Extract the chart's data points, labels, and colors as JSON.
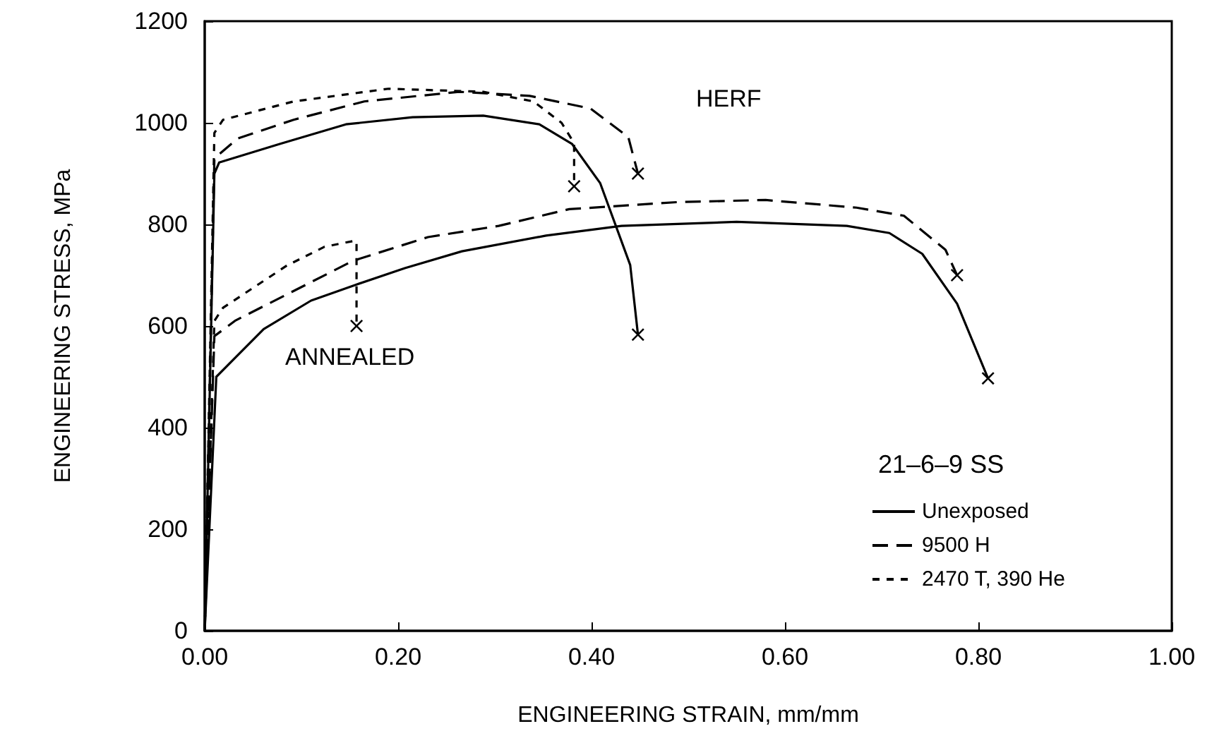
{
  "chart_data": {
    "type": "line",
    "xlabel": "ENGINEERING STRAIN, mm/mm",
    "ylabel": "ENGINEERING STRESS, MPa",
    "legend_title": "21–6–9 SS",
    "legend": "bottom right",
    "grid": false,
    "xlim": [
      0,
      1
    ],
    "xticks": [
      {
        "value": 0,
        "label": "0.00"
      },
      {
        "value": 0.2,
        "label": "0.20"
      },
      {
        "value": 0.4,
        "label": "0.40"
      },
      {
        "value": 0.6,
        "label": "0.60"
      },
      {
        "value": 0.8,
        "label": "0.80"
      },
      {
        "value": 1,
        "label": "1.00"
      }
    ],
    "ylim": [
      0,
      1200
    ],
    "yticks": [
      0,
      200,
      400,
      600,
      800,
      1000,
      1200
    ],
    "annotations": [
      "HERF",
      "ANNEALED"
    ],
    "series": [
      {
        "name": "Unexposed",
        "color": "#000000",
        "line_style": "solid",
        "x": [
          0,
          0.01,
          0.015,
          0.077,
          0.146,
          0.215,
          0.288,
          0.346,
          0.38,
          0.409,
          0.44,
          0.448
        ],
        "values": [
          0,
          900,
          922,
          958,
          997,
          1011,
          1014,
          997,
          958,
          881,
          720,
          583
        ]
      },
      {
        "name": "9500 H",
        "color": "#000000",
        "line_style": "dashed",
        "x": [
          0,
          0.01,
          0.034,
          0.092,
          0.165,
          0.263,
          0.336,
          0.399,
          0.438,
          0.448
        ],
        "values": [
          0,
          930,
          969,
          1006,
          1042,
          1061,
          1053,
          1028,
          972,
          900
        ]
      },
      {
        "name": "2470 T, 390 He",
        "color": "#000000",
        "line_style": "dotted",
        "x": [
          0,
          0.01,
          0.019,
          0.092,
          0.19,
          0.288,
          0.34,
          0.369,
          0.382,
          0.382
        ],
        "values": [
          0,
          980,
          1006,
          1042,
          1067,
          1061,
          1042,
          1000,
          960,
          875
        ]
      },
      {
        "color": "#000000",
        "line_style": "solid",
        "x": [
          0,
          0.012,
          0.061,
          0.11,
          0.156,
          0.207,
          0.266,
          0.353,
          0.431,
          0.55,
          0.664,
          0.708,
          0.742,
          0.778,
          0.81
        ],
        "values": [
          0,
          500,
          594,
          650,
          681,
          714,
          747,
          778,
          797,
          805,
          797,
          783,
          742,
          644,
          497
        ]
      },
      {
        "color": "#000000",
        "line_style": "dashed",
        "x": [
          0,
          0.01,
          0.032,
          0.09,
          0.153,
          0.231,
          0.304,
          0.377,
          0.49,
          0.58,
          0.674,
          0.723,
          0.766,
          0.778
        ],
        "values": [
          0,
          580,
          611,
          667,
          728,
          775,
          797,
          830,
          844,
          848,
          833,
          817,
          750,
          700
        ]
      },
      {
        "color": "#000000",
        "line_style": "dotted",
        "x": [
          0,
          0.01,
          0.019,
          0.085,
          0.124,
          0.153,
          0.157,
          0.157
        ],
        "values": [
          0,
          610,
          636,
          719,
          756,
          767,
          767,
          600
        ]
      }
    ]
  }
}
